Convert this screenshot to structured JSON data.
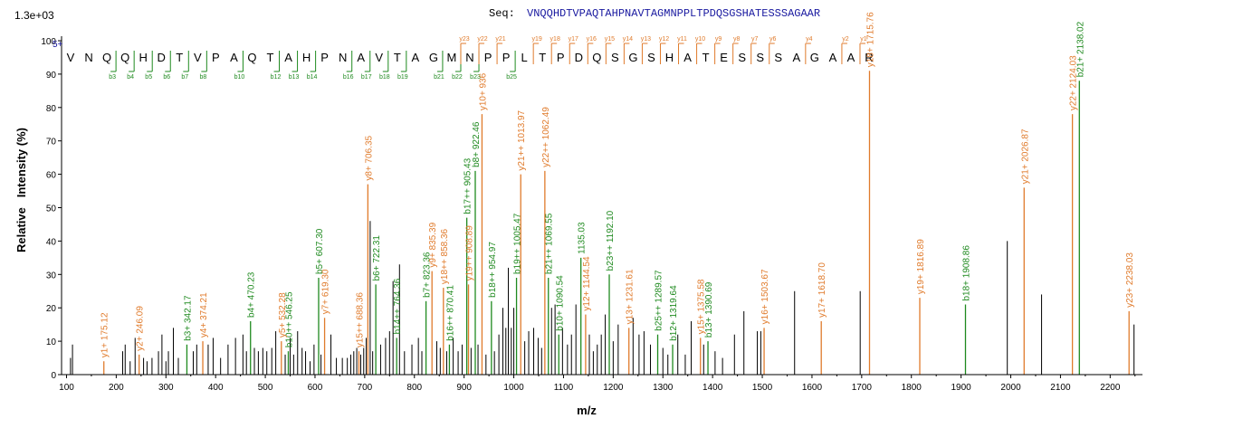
{
  "header": {
    "seq_label": "Seq:",
    "sequence": "VNQQHDTVPAQTAHPNAVTAGMNPPLTPDQSGSHATESSSAGAAR",
    "scale": "1.3e+03",
    "charge": "5+"
  },
  "colors": {
    "y_ion": "#e07b2c",
    "b_ion": "#1f8a1f",
    "other": "#000000",
    "grid": "#cccccc"
  },
  "chart_data": {
    "type": "bar",
    "title": "",
    "xlabel": "m/z",
    "ylabel": "Relative   Intensity (%)",
    "xlim": [
      90,
      2265
    ],
    "ylim": [
      0,
      100
    ],
    "x_ticks": [
      100,
      200,
      300,
      400,
      500,
      600,
      700,
      800,
      900,
      1000,
      1100,
      1200,
      1300,
      1400,
      1500,
      1600,
      1700,
      1800,
      1900,
      2000,
      2100,
      2200
    ],
    "y_ticks": [
      0,
      10,
      20,
      30,
      40,
      50,
      60,
      70,
      80,
      90,
      100
    ],
    "grid": false,
    "residues": [
      "V",
      "N",
      "Q",
      "Q",
      "H",
      "D",
      "T",
      "V",
      "P",
      "A",
      "Q",
      "T",
      "A",
      "H",
      "P",
      "N",
      "A",
      "V",
      "T",
      "A",
      "G",
      "M",
      "N",
      "P",
      "P",
      "L",
      "T",
      "P",
      "D",
      "Q",
      "S",
      "G",
      "S",
      "H",
      "A",
      "T",
      "E",
      "S",
      "S",
      "S",
      "A",
      "G",
      "A",
      "A",
      "R"
    ],
    "b_markers": [
      {
        "label": "b3",
        "after": 3
      },
      {
        "label": "b4",
        "after": 4
      },
      {
        "label": "b5",
        "after": 5
      },
      {
        "label": "b6",
        "after": 6
      },
      {
        "label": "b7",
        "after": 7
      },
      {
        "label": "b8",
        "after": 8
      },
      {
        "label": "b10",
        "after": 10
      },
      {
        "label": "b12",
        "after": 12
      },
      {
        "label": "b13",
        "after": 13
      },
      {
        "label": "b14",
        "after": 14
      },
      {
        "label": "b16",
        "after": 16
      },
      {
        "label": "b17",
        "after": 17
      },
      {
        "label": "b18",
        "after": 18
      },
      {
        "label": "b19",
        "after": 19
      },
      {
        "label": "b21",
        "after": 21
      },
      {
        "label": "b22",
        "after": 22
      },
      {
        "label": "b23",
        "after": 23
      },
      {
        "label": "b25",
        "after": 25
      }
    ],
    "y_markers": [
      {
        "label": "y23",
        "after": 22
      },
      {
        "label": "y22",
        "after": 23
      },
      {
        "label": "y21",
        "after": 24
      },
      {
        "label": "y19",
        "after": 26
      },
      {
        "label": "y18",
        "after": 27
      },
      {
        "label": "y17",
        "after": 28
      },
      {
        "label": "y16",
        "after": 29
      },
      {
        "label": "y15",
        "after": 30
      },
      {
        "label": "y14",
        "after": 31
      },
      {
        "label": "y13",
        "after": 32
      },
      {
        "label": "y12",
        "after": 33
      },
      {
        "label": "y11",
        "after": 34
      },
      {
        "label": "y10",
        "after": 35
      },
      {
        "label": "y9",
        "after": 36
      },
      {
        "label": "y8",
        "after": 37
      },
      {
        "label": "y7",
        "after": 38
      },
      {
        "label": "y6",
        "after": 39
      },
      {
        "label": "y4",
        "after": 41
      },
      {
        "label": "y2",
        "after": 43
      },
      {
        "label": "y1",
        "after": 44
      }
    ],
    "labeled_peaks": [
      {
        "mz": 175.12,
        "intensity": 4,
        "label": "y1+ 175.12",
        "ion": "y"
      },
      {
        "mz": 246.09,
        "intensity": 6,
        "label": "y2+ 246.09",
        "ion": "y"
      },
      {
        "mz": 342.17,
        "intensity": 9,
        "label": "b3+ 342.17",
        "ion": "b"
      },
      {
        "mz": 374.21,
        "intensity": 10,
        "label": "y4+ 374.21",
        "ion": "y"
      },
      {
        "mz": 470.23,
        "intensity": 16,
        "label": "b4+ 470.23",
        "ion": "b"
      },
      {
        "mz": 546.25,
        "intensity": 7,
        "label": "b10++ 546.25",
        "ion": "b"
      },
      {
        "mz": 532.28,
        "intensity": 10,
        "label": "y5+ 532.28",
        "ion": "y"
      },
      {
        "mz": 607.3,
        "intensity": 29,
        "label": "b5+ 607.30",
        "ion": "b"
      },
      {
        "mz": 619.3,
        "intensity": 17,
        "label": "y7+ 619.30",
        "ion": "y"
      },
      {
        "mz": 688.36,
        "intensity": 7,
        "label": "y15++ 688.36",
        "ion": "y"
      },
      {
        "mz": 706.35,
        "intensity": 57,
        "label": "y8+ 706.35",
        "ion": "y"
      },
      {
        "mz": 722.31,
        "intensity": 27,
        "label": "b6+ 722.31",
        "ion": "b"
      },
      {
        "mz": 764.36,
        "intensity": 11,
        "label": "b14++ 764.36",
        "ion": "b"
      },
      {
        "mz": 823.36,
        "intensity": 22,
        "label": "b7+ 823.36",
        "ion": "b"
      },
      {
        "mz": 835.39,
        "intensity": 31,
        "label": "y9+ 835.39",
        "ion": "y"
      },
      {
        "mz": 858.36,
        "intensity": 26,
        "label": "y18++ 858.36",
        "ion": "y"
      },
      {
        "mz": 870.41,
        "intensity": 9,
        "label": "b16++ 870.41",
        "ion": "b"
      },
      {
        "mz": 905.43,
        "intensity": 47,
        "label": "b17++ 905.43",
        "ion": "b"
      },
      {
        "mz": 908.89,
        "intensity": 27,
        "label": "y19++ 908.89",
        "ion": "y"
      },
      {
        "mz": 922.46,
        "intensity": 61,
        "label": "b8+ 922.46",
        "ion": "b"
      },
      {
        "mz": 936.0,
        "intensity": 78,
        "label": "y10+ 936",
        "ion": "y"
      },
      {
        "mz": 954.97,
        "intensity": 22,
        "label": "b18++ 954.97",
        "ion": "b"
      },
      {
        "mz": 1005.47,
        "intensity": 29,
        "label": "b19++ 1005.47",
        "ion": "b"
      },
      {
        "mz": 1013.97,
        "intensity": 60,
        "label": "y21++ 1013.97",
        "ion": "y"
      },
      {
        "mz": 1062.49,
        "intensity": 61,
        "label": "y22++ 1062.49",
        "ion": "y"
      },
      {
        "mz": 1069.55,
        "intensity": 29,
        "label": "b21++ 1069.55",
        "ion": "b"
      },
      {
        "mz": 1090.54,
        "intensity": 12,
        "label": "b10+ 1090.54",
        "ion": "b"
      },
      {
        "mz": 1135.03,
        "intensity": 35,
        "label": "1135.03",
        "ion": "b"
      },
      {
        "mz": 1144.54,
        "intensity": 18,
        "label": "y12+ 1144.54",
        "ion": "y"
      },
      {
        "mz": 1192.1,
        "intensity": 30,
        "label": "b23++ 1192.10",
        "ion": "b"
      },
      {
        "mz": 1231.61,
        "intensity": 14,
        "label": "y13+ 1231.61",
        "ion": "y"
      },
      {
        "mz": 1289.57,
        "intensity": 12,
        "label": "b25++ 1289.57",
        "ion": "b"
      },
      {
        "mz": 1319.64,
        "intensity": 9,
        "label": "b12+ 1319.64",
        "ion": "b"
      },
      {
        "mz": 1375.58,
        "intensity": 11,
        "label": "y15+ 1375.58",
        "ion": "y"
      },
      {
        "mz": 1390.69,
        "intensity": 10,
        "label": "b13+ 1390.69",
        "ion": "b"
      },
      {
        "mz": 1503.67,
        "intensity": 14,
        "label": "y16+ 1503.67",
        "ion": "y"
      },
      {
        "mz": 1618.7,
        "intensity": 16,
        "label": "y17+ 1618.70",
        "ion": "y"
      },
      {
        "mz": 1715.76,
        "intensity": 91,
        "label": "y18+ 1715.76",
        "ion": "y"
      },
      {
        "mz": 1816.89,
        "intensity": 23,
        "label": "y19+ 1816.89",
        "ion": "y"
      },
      {
        "mz": 1908.86,
        "intensity": 21,
        "label": "b18+ 1908.86",
        "ion": "b"
      },
      {
        "mz": 2026.87,
        "intensity": 56,
        "label": "y21+ 2026.87",
        "ion": "y"
      },
      {
        "mz": 2124.03,
        "intensity": 78,
        "label": "y22+ 2124.03",
        "ion": "y"
      },
      {
        "mz": 2138.02,
        "intensity": 88,
        "label": "b21+ 2138.02",
        "ion": "b"
      },
      {
        "mz": 2238.03,
        "intensity": 19,
        "label": "y23+ 2238.03",
        "ion": "y"
      }
    ],
    "unlabeled_peaks": [
      {
        "mz": 108,
        "intensity": 5
      },
      {
        "mz": 112,
        "intensity": 9
      },
      {
        "mz": 213,
        "intensity": 7
      },
      {
        "mz": 218,
        "intensity": 9
      },
      {
        "mz": 228,
        "intensity": 4
      },
      {
        "mz": 238,
        "intensity": 11
      },
      {
        "mz": 255,
        "intensity": 5
      },
      {
        "mz": 262,
        "intensity": 4
      },
      {
        "mz": 272,
        "intensity": 5
      },
      {
        "mz": 285,
        "intensity": 7
      },
      {
        "mz": 292,
        "intensity": 12
      },
      {
        "mz": 300,
        "intensity": 4
      },
      {
        "mz": 305,
        "intensity": 7
      },
      {
        "mz": 315,
        "intensity": 14
      },
      {
        "mz": 325,
        "intensity": 5
      },
      {
        "mz": 355,
        "intensity": 7
      },
      {
        "mz": 362,
        "intensity": 9
      },
      {
        "mz": 385,
        "intensity": 9
      },
      {
        "mz": 395,
        "intensity": 11
      },
      {
        "mz": 410,
        "intensity": 5
      },
      {
        "mz": 425,
        "intensity": 9
      },
      {
        "mz": 440,
        "intensity": 11
      },
      {
        "mz": 455,
        "intensity": 12
      },
      {
        "mz": 462,
        "intensity": 7
      },
      {
        "mz": 478,
        "intensity": 8
      },
      {
        "mz": 486,
        "intensity": 7
      },
      {
        "mz": 495,
        "intensity": 8
      },
      {
        "mz": 503,
        "intensity": 7
      },
      {
        "mz": 513,
        "intensity": 8
      },
      {
        "mz": 521,
        "intensity": 13
      },
      {
        "mz": 540,
        "intensity": 6
      },
      {
        "mz": 550,
        "intensity": 11
      },
      {
        "mz": 557,
        "intensity": 6
      },
      {
        "mz": 565,
        "intensity": 13
      },
      {
        "mz": 574,
        "intensity": 8
      },
      {
        "mz": 581,
        "intensity": 7
      },
      {
        "mz": 590,
        "intensity": 4
      },
      {
        "mz": 598,
        "intensity": 9
      },
      {
        "mz": 612,
        "intensity": 6
      },
      {
        "mz": 632,
        "intensity": 12
      },
      {
        "mz": 643,
        "intensity": 5
      },
      {
        "mz": 655,
        "intensity": 5
      },
      {
        "mz": 665,
        "intensity": 5
      },
      {
        "mz": 672,
        "intensity": 6
      },
      {
        "mz": 678,
        "intensity": 7
      },
      {
        "mz": 684,
        "intensity": 8
      },
      {
        "mz": 692,
        "intensity": 6
      },
      {
        "mz": 698,
        "intensity": 8
      },
      {
        "mz": 703,
        "intensity": 11
      },
      {
        "mz": 711,
        "intensity": 46
      },
      {
        "mz": 716,
        "intensity": 7
      },
      {
        "mz": 732,
        "intensity": 9
      },
      {
        "mz": 742,
        "intensity": 11
      },
      {
        "mz": 750,
        "intensity": 13
      },
      {
        "mz": 757,
        "intensity": 28
      },
      {
        "mz": 770,
        "intensity": 33
      },
      {
        "mz": 780,
        "intensity": 7
      },
      {
        "mz": 795,
        "intensity": 9
      },
      {
        "mz": 808,
        "intensity": 11
      },
      {
        "mz": 815,
        "intensity": 7
      },
      {
        "mz": 845,
        "intensity": 10
      },
      {
        "mz": 852,
        "intensity": 8
      },
      {
        "mz": 865,
        "intensity": 7
      },
      {
        "mz": 878,
        "intensity": 11
      },
      {
        "mz": 888,
        "intensity": 7
      },
      {
        "mz": 896,
        "intensity": 9
      },
      {
        "mz": 914,
        "intensity": 8
      },
      {
        "mz": 928,
        "intensity": 9
      },
      {
        "mz": 944,
        "intensity": 6
      },
      {
        "mz": 961,
        "intensity": 7
      },
      {
        "mz": 970,
        "intensity": 12
      },
      {
        "mz": 978,
        "intensity": 20
      },
      {
        "mz": 984,
        "intensity": 14
      },
      {
        "mz": 989,
        "intensity": 32
      },
      {
        "mz": 995,
        "intensity": 14
      },
      {
        "mz": 1000,
        "intensity": 20
      },
      {
        "mz": 1022,
        "intensity": 10
      },
      {
        "mz": 1030,
        "intensity": 13
      },
      {
        "mz": 1040,
        "intensity": 14
      },
      {
        "mz": 1049,
        "intensity": 11
      },
      {
        "mz": 1056,
        "intensity": 8
      },
      {
        "mz": 1076,
        "intensity": 20
      },
      {
        "mz": 1083,
        "intensity": 21
      },
      {
        "mz": 1098,
        "intensity": 14
      },
      {
        "mz": 1108,
        "intensity": 9
      },
      {
        "mz": 1116,
        "intensity": 12
      },
      {
        "mz": 1125,
        "intensity": 21
      },
      {
        "mz": 1152,
        "intensity": 12
      },
      {
        "mz": 1160,
        "intensity": 7
      },
      {
        "mz": 1168,
        "intensity": 9
      },
      {
        "mz": 1176,
        "intensity": 12
      },
      {
        "mz": 1184,
        "intensity": 18
      },
      {
        "mz": 1200,
        "intensity": 10
      },
      {
        "mz": 1210,
        "intensity": 15
      },
      {
        "mz": 1240,
        "intensity": 17
      },
      {
        "mz": 1252,
        "intensity": 12
      },
      {
        "mz": 1262,
        "intensity": 13
      },
      {
        "mz": 1275,
        "intensity": 9
      },
      {
        "mz": 1300,
        "intensity": 8
      },
      {
        "mz": 1310,
        "intensity": 6
      },
      {
        "mz": 1330,
        "intensity": 12
      },
      {
        "mz": 1345,
        "intensity": 6
      },
      {
        "mz": 1357,
        "intensity": 16
      },
      {
        "mz": 1382,
        "intensity": 9
      },
      {
        "mz": 1405,
        "intensity": 7
      },
      {
        "mz": 1420,
        "intensity": 5
      },
      {
        "mz": 1444,
        "intensity": 12
      },
      {
        "mz": 1463,
        "intensity": 19
      },
      {
        "mz": 1490,
        "intensity": 13
      },
      {
        "mz": 1497,
        "intensity": 13
      },
      {
        "mz": 1565,
        "intensity": 25
      },
      {
        "mz": 1697,
        "intensity": 25
      },
      {
        "mz": 1993,
        "intensity": 40
      },
      {
        "mz": 2062,
        "intensity": 24
      },
      {
        "mz": 2248,
        "intensity": 15
      }
    ]
  }
}
